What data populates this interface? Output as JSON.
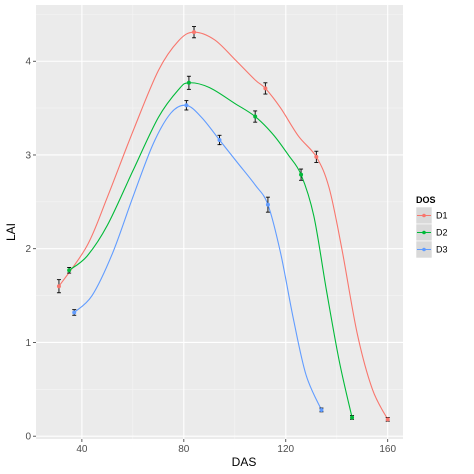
{
  "chart_data": {
    "type": "line",
    "xlabel": "DAS",
    "ylabel": "LAI",
    "xlim": [
      22,
      166
    ],
    "ylim": [
      -0.03,
      4.6
    ],
    "x_ticks": [
      40,
      80,
      120,
      160
    ],
    "y_ticks": [
      0,
      1,
      2,
      3,
      4
    ],
    "grid": true,
    "legend": {
      "title": "DOS",
      "position": "right"
    },
    "series": [
      {
        "name": "D1",
        "color": "#F8766D",
        "points": [
          {
            "x": 31,
            "y": 1.6,
            "err": 0.07
          },
          {
            "x": 84,
            "y": 4.31,
            "err": 0.06
          },
          {
            "x": 112,
            "y": 3.71,
            "err": 0.06
          },
          {
            "x": 132,
            "y": 2.98,
            "err": 0.06
          },
          {
            "x": 160,
            "y": 0.18,
            "err": 0.02
          }
        ],
        "curve": [
          {
            "x": 31,
            "y": 1.6
          },
          {
            "x": 42,
            "y": 2.03
          },
          {
            "x": 50,
            "y": 2.55
          },
          {
            "x": 60,
            "y": 3.25
          },
          {
            "x": 70,
            "y": 3.9
          },
          {
            "x": 78,
            "y": 4.22
          },
          {
            "x": 84,
            "y": 4.31
          },
          {
            "x": 92,
            "y": 4.23
          },
          {
            "x": 100,
            "y": 4.02
          },
          {
            "x": 108,
            "y": 3.8
          },
          {
            "x": 112,
            "y": 3.71
          },
          {
            "x": 118,
            "y": 3.5
          },
          {
            "x": 125,
            "y": 3.2
          },
          {
            "x": 132,
            "y": 2.98
          },
          {
            "x": 137,
            "y": 2.65
          },
          {
            "x": 142,
            "y": 2.0
          },
          {
            "x": 148,
            "y": 1.1
          },
          {
            "x": 154,
            "y": 0.5
          },
          {
            "x": 160,
            "y": 0.18
          }
        ]
      },
      {
        "name": "D2",
        "color": "#00BA38",
        "points": [
          {
            "x": 35,
            "y": 1.77,
            "err": 0.03
          },
          {
            "x": 82,
            "y": 3.77,
            "err": 0.07
          },
          {
            "x": 108,
            "y": 3.41,
            "err": 0.06
          },
          {
            "x": 126,
            "y": 2.79,
            "err": 0.06
          },
          {
            "x": 146,
            "y": 0.2,
            "err": 0.02
          }
        ],
        "curve": [
          {
            "x": 35,
            "y": 1.77
          },
          {
            "x": 42,
            "y": 1.92
          },
          {
            "x": 50,
            "y": 2.25
          },
          {
            "x": 60,
            "y": 2.83
          },
          {
            "x": 70,
            "y": 3.4
          },
          {
            "x": 78,
            "y": 3.7
          },
          {
            "x": 82,
            "y": 3.77
          },
          {
            "x": 90,
            "y": 3.72
          },
          {
            "x": 100,
            "y": 3.55
          },
          {
            "x": 108,
            "y": 3.41
          },
          {
            "x": 115,
            "y": 3.22
          },
          {
            "x": 121,
            "y": 3.0
          },
          {
            "x": 126,
            "y": 2.79
          },
          {
            "x": 131,
            "y": 2.35
          },
          {
            "x": 136,
            "y": 1.55
          },
          {
            "x": 141,
            "y": 0.8
          },
          {
            "x": 146,
            "y": 0.2
          }
        ]
      },
      {
        "name": "D3",
        "color": "#619CFF",
        "points": [
          {
            "x": 37,
            "y": 1.32,
            "err": 0.03
          },
          {
            "x": 81,
            "y": 3.53,
            "err": 0.05
          },
          {
            "x": 94,
            "y": 3.16,
            "err": 0.05
          },
          {
            "x": 113,
            "y": 2.47,
            "err": 0.08
          },
          {
            "x": 134,
            "y": 0.28,
            "err": 0.02
          }
        ],
        "curve": [
          {
            "x": 37,
            "y": 1.32
          },
          {
            "x": 44,
            "y": 1.5
          },
          {
            "x": 52,
            "y": 1.95
          },
          {
            "x": 60,
            "y": 2.55
          },
          {
            "x": 68,
            "y": 3.12
          },
          {
            "x": 75,
            "y": 3.45
          },
          {
            "x": 81,
            "y": 3.53
          },
          {
            "x": 87,
            "y": 3.4
          },
          {
            "x": 94,
            "y": 3.16
          },
          {
            "x": 101,
            "y": 2.92
          },
          {
            "x": 108,
            "y": 2.68
          },
          {
            "x": 113,
            "y": 2.47
          },
          {
            "x": 118,
            "y": 1.95
          },
          {
            "x": 123,
            "y": 1.25
          },
          {
            "x": 128,
            "y": 0.65
          },
          {
            "x": 134,
            "y": 0.28
          }
        ]
      }
    ]
  },
  "colors": {
    "panel_background": "#EBEBEB",
    "major_grid": "#FFFFFF",
    "minor_grid": "#F5F5F5",
    "error_bar": "#000000",
    "legend_key_background": "#D9D9D9"
  }
}
